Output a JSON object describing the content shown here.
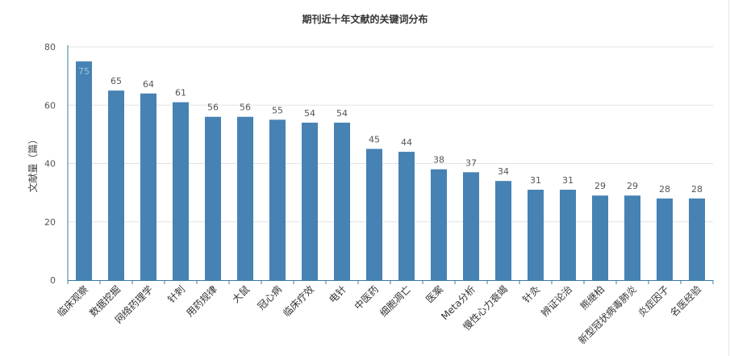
{
  "chart_data": {
    "type": "bar",
    "title": "期刊近十年文献的关键词分布",
    "xlabel": "",
    "ylabel": "文献量（篇）",
    "ylim": [
      0,
      80
    ],
    "yticks": [
      0,
      20,
      40,
      60,
      80
    ],
    "grid": true,
    "legend": "none",
    "bar_color": "#4682b4",
    "categories": [
      "临床观察",
      "数据挖掘",
      "网络药理学",
      "针刺",
      "用药规律",
      "大鼠",
      "冠心病",
      "临床疗效",
      "电针",
      "中医药",
      "细胞凋亡",
      "医案",
      "Meta分析",
      "慢性心力衰竭",
      "针灸",
      "辨证论治",
      "熊继柏",
      "新型冠状病毒肺炎",
      "炎症因子",
      "名医经验"
    ],
    "values": [
      75,
      65,
      64,
      61,
      56,
      56,
      55,
      54,
      54,
      45,
      44,
      38,
      37,
      34,
      31,
      31,
      29,
      29,
      28,
      28
    ]
  }
}
